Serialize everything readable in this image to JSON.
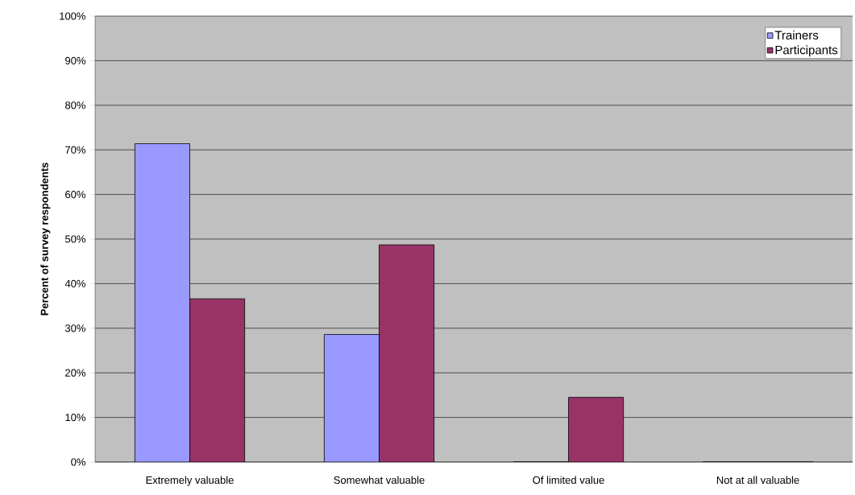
{
  "chart_data": {
    "type": "bar",
    "ylabel": "Percent of survey respondents",
    "categories": [
      "Extremely valuable",
      "Somewhat valuable",
      "Of limited value",
      "Not at all valuable"
    ],
    "series": [
      {
        "name": "Trainers",
        "color": "#9999ff",
        "values": [
          71.4,
          28.6,
          0,
          0
        ]
      },
      {
        "name": "Participants",
        "color": "#993366",
        "values": [
          36.6,
          48.7,
          14.5,
          0
        ]
      }
    ],
    "ylim": [
      0,
      100
    ],
    "yticks": [
      {
        "value": 0,
        "label": "0%"
      },
      {
        "value": 10,
        "label": "10%"
      },
      {
        "value": 20,
        "label": "20%"
      },
      {
        "value": 30,
        "label": "30%"
      },
      {
        "value": 40,
        "label": "40%"
      },
      {
        "value": 50,
        "label": "50%"
      },
      {
        "value": 60,
        "label": "60%"
      },
      {
        "value": 70,
        "label": "70%"
      },
      {
        "value": 80,
        "label": "80%"
      },
      {
        "value": 90,
        "label": "90%"
      },
      {
        "value": 100,
        "label": "100%"
      }
    ],
    "grid": "y",
    "legend": "top right"
  }
}
